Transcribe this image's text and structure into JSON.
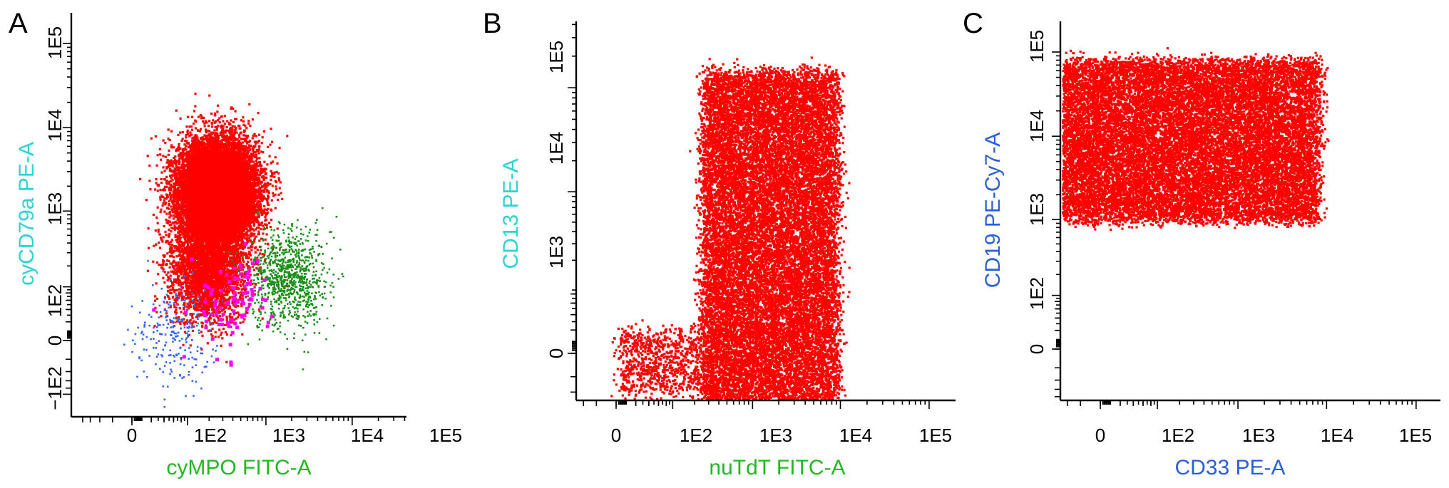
{
  "chart_data": [
    {
      "type": "scatter",
      "panel_label": "A",
      "title": "",
      "xlabel": "cyMPO FITC-A",
      "ylabel": "cyCD79a PE-A",
      "xlabel_color": "#22b822",
      "ylabel_color": "#2bd4d4",
      "x_scale": "biexponential",
      "y_scale": "biexponential",
      "xlim": [
        -200,
        150000
      ],
      "ylim": [
        -200,
        300000
      ],
      "x_ticks": [
        "0",
        "1E2",
        "1E3",
        "1E4",
        "1E5"
      ],
      "y_ticks": [
        "−1E2",
        "0",
        "1E2",
        "1E3",
        "1E4",
        "1E5"
      ],
      "series": [
        {
          "color": "#ff0000",
          "clusters": [
            {
              "center_x": 250,
              "center_y": 1800,
              "points": 14000
            },
            {
              "center_x": 180,
              "center_y": 180,
              "points": 3000
            }
          ]
        },
        {
          "color": "#1a8f1a",
          "clusters": [
            {
              "center_x": 1800,
              "center_y": 130,
              "points": 900
            }
          ]
        },
        {
          "color": "#3366ff",
          "clusters": [
            {
              "center_x": 60,
              "center_y": 5,
              "points": 250
            }
          ]
        },
        {
          "color": "#ff00ff",
          "clusters": [
            {
              "center_x": 380,
              "center_y": 60,
              "points": 90
            }
          ]
        }
      ]
    },
    {
      "type": "scatter",
      "panel_label": "B",
      "title": "",
      "xlabel": "nuTdT FITC-A",
      "ylabel": "CD13 PE-A",
      "xlabel_color": "#22b822",
      "ylabel_color": "#2bd4d4",
      "x_scale": "biexponential",
      "y_scale": "biexponential",
      "xlim": [
        -200,
        150000
      ],
      "ylim": [
        -150,
        200000
      ],
      "x_ticks": [
        "0",
        "1E2",
        "1E3",
        "1E4",
        "1E5"
      ],
      "y_ticks": [
        "0",
        "1E3",
        "1E4",
        "1E5"
      ],
      "series": [
        {
          "color": "#ff0000",
          "clusters": [
            {
              "x_range": [
                250,
                9000
              ],
              "y_range": [
                -60,
                14000
              ],
              "points": 20000
            },
            {
              "x_range": [
                2,
                250
              ],
              "y_range": [
                -40,
                20
              ],
              "points": 900
            }
          ]
        }
      ]
    },
    {
      "type": "scatter",
      "panel_label": "C",
      "title": "",
      "xlabel": "CD33 PE-A",
      "ylabel": "CD19 PE-Cy7-A",
      "xlabel_color": "#2b5fd9",
      "ylabel_color": "#2b5fd9",
      "x_scale": "biexponential",
      "y_scale": "biexponential",
      "xlim": [
        -200,
        200000
      ],
      "ylim": [
        -400,
        150000
      ],
      "x_ticks": [
        "0",
        "1E2",
        "1E3",
        "1E4",
        "1E5"
      ],
      "y_ticks": [
        "0",
        "1E2",
        "1E3",
        "1E4",
        "1E5"
      ],
      "series": [
        {
          "color": "#ff0000",
          "clusters": [
            {
              "x_range": [
                -200,
                8000
              ],
              "y_range": [
                1000,
                80000
              ],
              "points": 22000
            }
          ]
        }
      ]
    }
  ]
}
